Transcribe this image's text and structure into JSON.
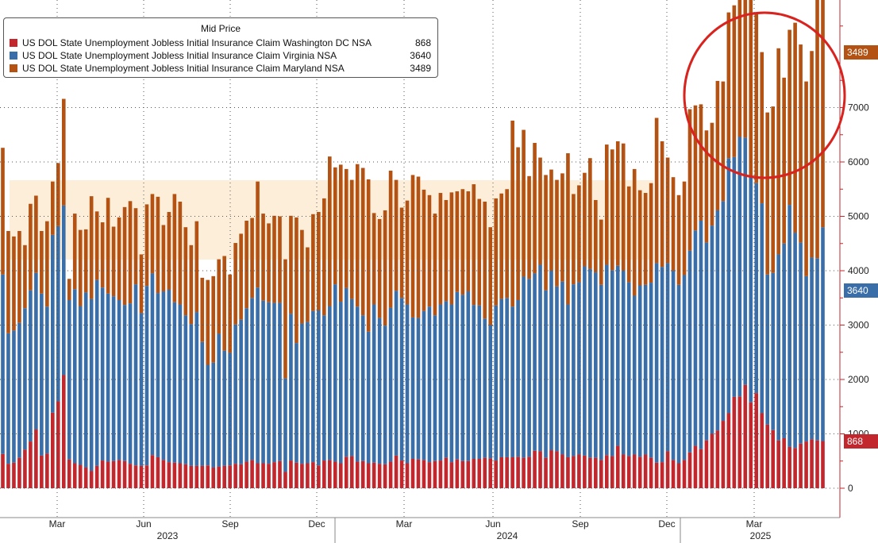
{
  "chart_data": {
    "type": "bar",
    "stacked": true,
    "legend_title": "Mid Price",
    "y_ticks": [
      0,
      1000,
      2000,
      3000,
      4000,
      5000,
      6000,
      7000
    ],
    "y_tick_labels": [
      "0",
      "1000",
      "2000",
      "3000",
      "4000",
      "5000",
      "6000",
      "7000"
    ],
    "ylim": [
      -150,
      8900
    ],
    "x_month_labels": [
      "Mar",
      "Jun",
      "Sep",
      "Dec",
      "Mar",
      "Jun",
      "Sep",
      "Dec",
      "Mar"
    ],
    "x_year_labels": [
      "2023",
      "2024",
      "2025"
    ],
    "series": [
      {
        "name": "US DOL State Unemployment Jobless Initial Insurance Claim Washington DC NSA",
        "last": "868",
        "color": "#c1272d",
        "values": [
          630,
          450,
          470,
          560,
          710,
          860,
          1080,
          600,
          640,
          1390,
          1600,
          2080,
          530,
          460,
          430,
          380,
          320,
          410,
          510,
          490,
          500,
          520,
          500,
          450,
          420,
          410,
          420,
          610,
          570,
          520,
          480,
          470,
          460,
          440,
          410,
          410,
          410,
          420,
          380,
          400,
          410,
          420,
          450,
          440,
          490,
          520,
          460,
          460,
          450,
          480,
          500,
          300,
          510,
          470,
          450,
          460,
          480,
          420,
          510,
          520,
          490,
          460,
          580,
          590,
          490,
          500,
          460,
          470,
          450,
          440,
          490,
          600,
          510,
          460,
          540,
          530,
          520,
          480,
          500,
          510,
          560,
          480,
          530,
          500,
          500,
          540,
          540,
          560,
          550,
          510,
          570,
          570,
          570,
          580,
          560,
          580,
          690,
          680,
          560,
          700,
          680,
          620,
          570,
          590,
          620,
          600,
          560,
          560,
          520,
          610,
          590,
          780,
          620,
          590,
          620,
          580,
          620,
          560,
          470,
          480,
          680,
          520,
          460,
          520,
          660,
          780,
          720,
          880,
          1000,
          1060,
          1240,
          1380,
          1680,
          1690,
          1900,
          1580,
          1750,
          1380,
          1170,
          1070,
          880,
          920,
          760,
          740,
          820,
          860,
          900,
          880,
          868
        ],
        "label_value": 868
      },
      {
        "name": "US DOL State Unemployment Jobless Initial Insurance Claim Virginia NSA",
        "last": "3640",
        "color": "#3a6ea8",
        "values": [
          3300,
          2400,
          2430,
          2480,
          2600,
          2780,
          2880,
          2980,
          2700,
          3270,
          3220,
          3120,
          2930,
          3200,
          2920,
          3220,
          3160,
          3420,
          3180,
          3090,
          3030,
          2940,
          2870,
          2950,
          3330,
          2810,
          3300,
          3340,
          3020,
          3100,
          3170,
          2950,
          2920,
          2740,
          2610,
          2830,
          2280,
          1850,
          1930,
          2440,
          2120,
          2070,
          2560,
          2660,
          2820,
          2980,
          3230,
          2990,
          2970,
          2930,
          2910,
          1720,
          2700,
          2200,
          2580,
          2600,
          2780,
          2850,
          2670,
          2830,
          3260,
          2970,
          3100,
          2890,
          2850,
          2680,
          2420,
          2910,
          2680,
          2550,
          2830,
          3030,
          2990,
          2920,
          2600,
          2600,
          2740,
          2860,
          2680,
          2870,
          2880,
          2900,
          3080,
          3060,
          3120,
          2830,
          2820,
          2560,
          2450,
          2850,
          2910,
          2930,
          2770,
          2880,
          3330,
          3270,
          3260,
          3430,
          3080,
          3300,
          3030,
          3180,
          2810,
          3160,
          3170,
          3480,
          3470,
          3410,
          3220,
          3500,
          3420,
          3310,
          3380,
          3200,
          2920,
          3150,
          3120,
          3220,
          3670,
          3590,
          3460,
          3480,
          3280,
          3400,
          3710,
          3960,
          4200,
          3640,
          3830,
          4050,
          4040,
          4690,
          4410,
          4770,
          4550,
          4160,
          3860,
          3860,
          2760,
          2890,
          3420,
          3580,
          4450,
          3960,
          3700,
          3040,
          3340,
          3350,
          3930,
          3640
        ],
        "label_value": 3640
      },
      {
        "name": "US DOL State Unemployment Jobless Initial Insurance Claim Maryland NSA",
        "last": "3489",
        "color": "#b35212",
        "values": [
          2330,
          1880,
          1730,
          1690,
          1160,
          1590,
          1420,
          1150,
          1570,
          980,
          1160,
          1960,
          390,
          1390,
          1400,
          1160,
          1890,
          1260,
          1200,
          1760,
          1280,
          1520,
          1800,
          1880,
          1400,
          1080,
          1500,
          1460,
          1770,
          1220,
          1430,
          1990,
          1890,
          1620,
          1450,
          1670,
          1180,
          1560,
          1590,
          1370,
          1740,
          1440,
          1500,
          1580,
          1610,
          1470,
          1950,
          1600,
          1450,
          1600,
          1590,
          2190,
          1800,
          2310,
          1720,
          1370,
          1780,
          1810,
          2150,
          2750,
          2150,
          2520,
          2190,
          2190,
          2620,
          2710,
          2800,
          1680,
          1820,
          2120,
          2520,
          2040,
          1660,
          1910,
          2620,
          2600,
          2230,
          2050,
          1870,
          2050,
          1860,
          2060,
          1850,
          1940,
          1840,
          2220,
          1960,
          2150,
          1800,
          1970,
          1940,
          2000,
          3420,
          2810,
          2700,
          1890,
          2400,
          1970,
          2120,
          1860,
          1960,
          1990,
          2780,
          1660,
          1780,
          1720,
          2040,
          1330,
          1200,
          2210,
          2220,
          2290,
          2340,
          1760,
          2330,
          1750,
          1690,
          1830,
          2670,
          2310,
          1940,
          1720,
          1650,
          1720,
          2600,
          2300,
          2140,
          2060,
          1890,
          2380,
          2200,
          2680,
          2790,
          2690,
          2650,
          3570,
          3140,
          2780,
          2980,
          3060,
          3790,
          3050,
          3220,
          3860,
          3640,
          3580,
          3800,
          5100,
          4510,
          3489
        ],
        "label_value": 3489
      }
    ],
    "annotations": [
      "shaded band ~4200-5700 from Feb 2023 to Nov 2024",
      "red circle highlighting 2025 highs"
    ]
  }
}
